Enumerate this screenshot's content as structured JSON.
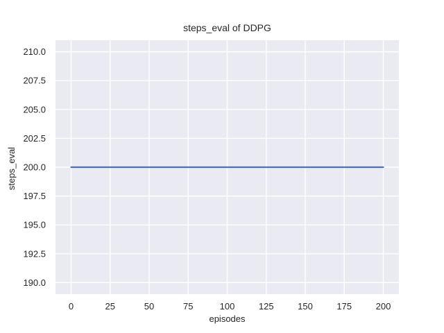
{
  "chart_data": {
    "type": "line",
    "title": "steps_eval of DDPG",
    "xlabel": "episodes",
    "ylabel": "steps_eval",
    "xlim": [
      -10,
      210
    ],
    "ylim": [
      189,
      211
    ],
    "xtick_labels": [
      "0",
      "25",
      "50",
      "75",
      "100",
      "125",
      "150",
      "175",
      "200"
    ],
    "ytick_labels": [
      "190.0",
      "192.5",
      "195.0",
      "197.5",
      "200.0",
      "202.5",
      "205.0",
      "207.5",
      "210.0"
    ],
    "grid": true,
    "legend": "none",
    "style": "seaborn-darkgrid",
    "series": [
      {
        "name": "DDPG",
        "x": [
          0,
          200
        ],
        "y": [
          200,
          200
        ]
      }
    ],
    "colors": {
      "figure_background": "#ffffff",
      "plot_background": "#eaeaf2",
      "grid": "#ffffff",
      "line": "#4c72b0",
      "text": "#262626"
    }
  }
}
